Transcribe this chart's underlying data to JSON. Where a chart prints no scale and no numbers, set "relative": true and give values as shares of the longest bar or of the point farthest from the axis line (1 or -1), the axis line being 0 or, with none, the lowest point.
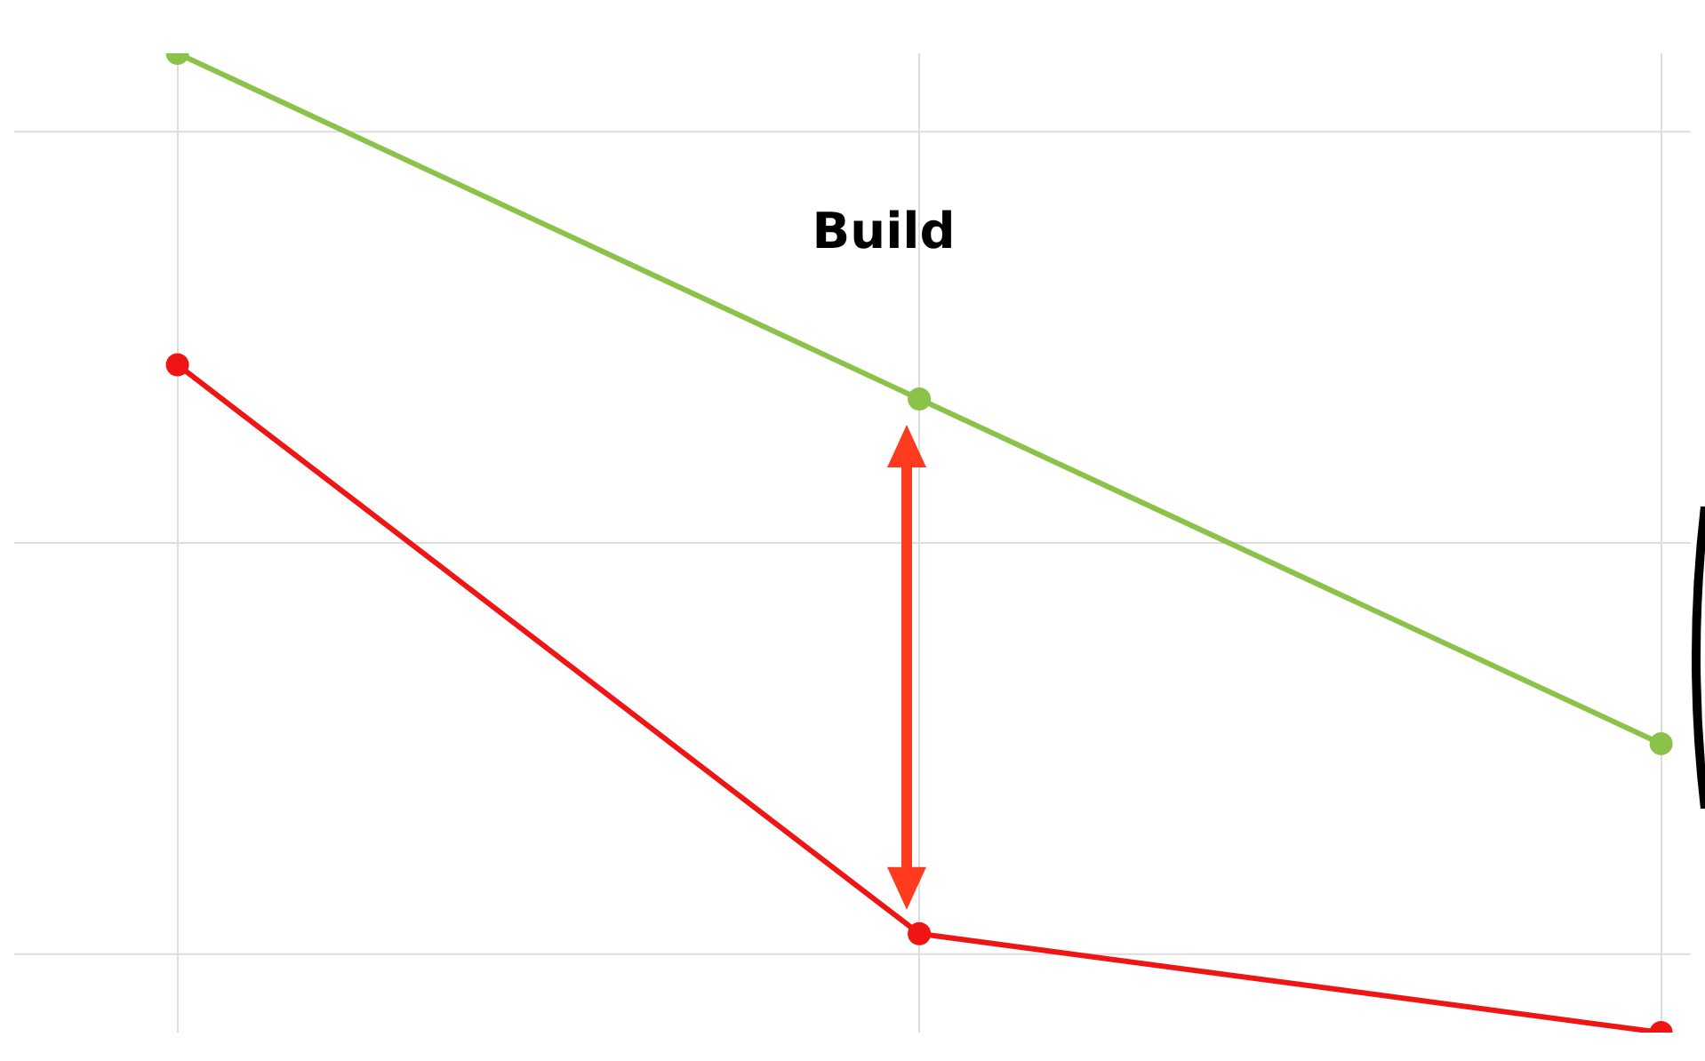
{
  "chart_data": {
    "type": "line",
    "relative": true,
    "categories": [
      null,
      null,
      null
    ],
    "series": [
      {
        "color": "#8bc34a",
        "values": [
          1,
          0.647,
          0.295
        ]
      },
      {
        "color": "#f01414",
        "values": [
          0.682,
          0.101,
          0
        ]
      }
    ],
    "annotations": [
      "Build"
    ],
    "grid": true,
    "marker": "circle",
    "line_style": "solid",
    "legend": false
  }
}
